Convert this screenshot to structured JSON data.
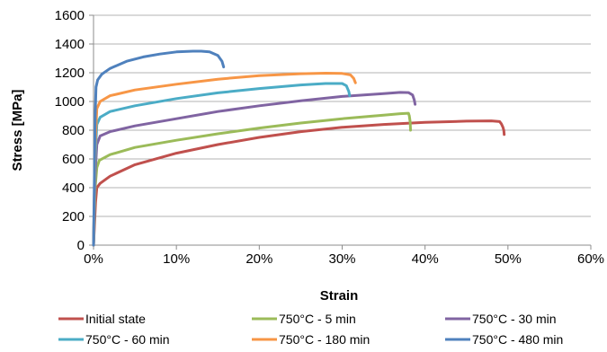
{
  "chart_data": {
    "type": "line",
    "xlabel": "Strain",
    "ylabel": "Stress [MPa]",
    "xlim": [
      0,
      0.6
    ],
    "ylim": [
      0,
      1600
    ],
    "x_ticks": [
      0,
      0.1,
      0.2,
      0.3,
      0.4,
      0.5,
      0.6
    ],
    "x_tick_labels": [
      "0%",
      "10%",
      "20%",
      "30%",
      "40%",
      "50%",
      "60%"
    ],
    "y_ticks": [
      0,
      200,
      400,
      600,
      800,
      1000,
      1200,
      1400,
      1600
    ],
    "y_tick_labels": [
      "0",
      "200",
      "400",
      "600",
      "800",
      "1000",
      "1200",
      "1400",
      "1600"
    ],
    "grid": "horizontal",
    "legend_position": "bottom",
    "series": [
      {
        "name": "Initial state",
        "color": "#c0504d",
        "points": [
          [
            0,
            0
          ],
          [
            0.0025,
            300
          ],
          [
            0.004,
            400
          ],
          [
            0.008,
            430
          ],
          [
            0.02,
            480
          ],
          [
            0.05,
            560
          ],
          [
            0.1,
            640
          ],
          [
            0.15,
            700
          ],
          [
            0.2,
            750
          ],
          [
            0.25,
            790
          ],
          [
            0.3,
            820
          ],
          [
            0.35,
            840
          ],
          [
            0.4,
            855
          ],
          [
            0.45,
            863
          ],
          [
            0.48,
            865
          ],
          [
            0.49,
            860
          ],
          [
            0.492,
            845
          ],
          [
            0.494,
            820
          ],
          [
            0.495,
            800
          ],
          [
            0.4955,
            770
          ]
        ]
      },
      {
        "name": "750°C - 5 min",
        "color": "#9bbb59",
        "points": [
          [
            0,
            0
          ],
          [
            0.002,
            400
          ],
          [
            0.004,
            540
          ],
          [
            0.007,
            590
          ],
          [
            0.02,
            630
          ],
          [
            0.05,
            680
          ],
          [
            0.1,
            730
          ],
          [
            0.15,
            775
          ],
          [
            0.2,
            815
          ],
          [
            0.25,
            850
          ],
          [
            0.3,
            880
          ],
          [
            0.35,
            905
          ],
          [
            0.37,
            915
          ],
          [
            0.38,
            918
          ],
          [
            0.381,
            900
          ],
          [
            0.382,
            860
          ],
          [
            0.3825,
            800
          ]
        ]
      },
      {
        "name": "750°C - 30 min",
        "color": "#8064a2",
        "points": [
          [
            0,
            0
          ],
          [
            0.002,
            500
          ],
          [
            0.004,
            700
          ],
          [
            0.008,
            760
          ],
          [
            0.02,
            790
          ],
          [
            0.05,
            830
          ],
          [
            0.1,
            880
          ],
          [
            0.15,
            930
          ],
          [
            0.2,
            970
          ],
          [
            0.25,
            1005
          ],
          [
            0.3,
            1035
          ],
          [
            0.35,
            1055
          ],
          [
            0.37,
            1063
          ],
          [
            0.38,
            1062
          ],
          [
            0.385,
            1045
          ],
          [
            0.387,
            1010
          ],
          [
            0.388,
            980
          ]
        ]
      },
      {
        "name": "750°C - 60 min",
        "color": "#4bacc6",
        "points": [
          [
            0,
            0
          ],
          [
            0.002,
            600
          ],
          [
            0.004,
            840
          ],
          [
            0.008,
            890
          ],
          [
            0.02,
            930
          ],
          [
            0.05,
            970
          ],
          [
            0.1,
            1020
          ],
          [
            0.15,
            1060
          ],
          [
            0.2,
            1090
          ],
          [
            0.25,
            1115
          ],
          [
            0.28,
            1125
          ],
          [
            0.3,
            1125
          ],
          [
            0.305,
            1110
          ],
          [
            0.308,
            1070
          ],
          [
            0.309,
            1040
          ]
        ]
      },
      {
        "name": "750°C - 180 min",
        "color": "#f79646",
        "points": [
          [
            0,
            0
          ],
          [
            0.002,
            700
          ],
          [
            0.004,
            950
          ],
          [
            0.008,
            1000
          ],
          [
            0.02,
            1040
          ],
          [
            0.05,
            1080
          ],
          [
            0.1,
            1120
          ],
          [
            0.15,
            1155
          ],
          [
            0.2,
            1180
          ],
          [
            0.25,
            1193
          ],
          [
            0.28,
            1197
          ],
          [
            0.3,
            1195
          ],
          [
            0.31,
            1185
          ],
          [
            0.314,
            1160
          ],
          [
            0.316,
            1130
          ]
        ]
      },
      {
        "name": "750°C - 480 min",
        "color": "#4f81bd",
        "points": [
          [
            0,
            0
          ],
          [
            0.002,
            900
          ],
          [
            0.003,
            1100
          ],
          [
            0.005,
            1150
          ],
          [
            0.01,
            1190
          ],
          [
            0.02,
            1230
          ],
          [
            0.04,
            1280
          ],
          [
            0.06,
            1310
          ],
          [
            0.08,
            1330
          ],
          [
            0.1,
            1345
          ],
          [
            0.12,
            1350
          ],
          [
            0.13,
            1350
          ],
          [
            0.14,
            1345
          ],
          [
            0.15,
            1320
          ],
          [
            0.155,
            1280
          ],
          [
            0.157,
            1240
          ]
        ]
      }
    ]
  }
}
